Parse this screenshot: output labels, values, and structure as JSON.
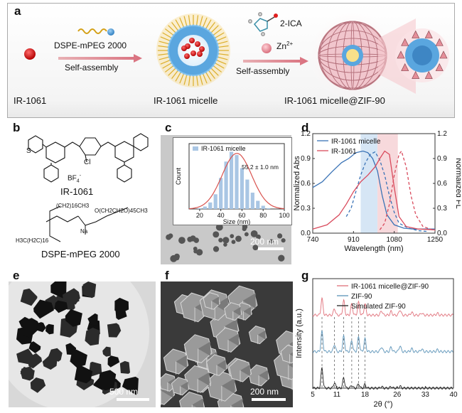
{
  "panel_labels": {
    "a": "a",
    "b": "b",
    "c": "c",
    "d": "d",
    "e": "e",
    "f": "f",
    "g": "g"
  },
  "scheme": {
    "reagent1": "DSPE-mPEG 2000",
    "step1": "Self-assembly",
    "reagent2": "2-ICA",
    "metal": "Zn",
    "metal_charge": "2+",
    "step2": "Self-assembly",
    "label_dye": "IR-1061",
    "label_micelle": "IR-1061 micelle",
    "label_product": "IR-1061 micelle@ZIF-90"
  },
  "structures": {
    "ir1061_name": "IR-1061",
    "counterion": "BF",
    "counterion_sub": "4",
    "counterion_sup": "-",
    "cl": "Cl",
    "sulfur": "S",
    "dspe_name": "DSPE-mPEG 2000",
    "chain1": "(CH2)16CH3",
    "chain2": "H3C(H2C)16",
    "peg": "O(CH2CH2O)45CH3",
    "na": "Na"
  },
  "tem_c": {
    "scale": "200 nm"
  },
  "tem_e": {
    "scale": "500 nm"
  },
  "sem_f": {
    "scale": "200 nm"
  },
  "colors": {
    "micelle_line": "#3a73b6",
    "dye_line": "#d94a5c",
    "zif_line": "#e0707a",
    "zif90_line": "#5b93b8",
    "sim_line": "#222222",
    "hist_bar": "#a9c6e4",
    "fit_line": "#d9534f",
    "band_blue": "#d6e6f5",
    "band_red": "#f7d9dc"
  },
  "chart_data": [
    {
      "id": "c",
      "type": "bar",
      "legend": "IR-1061 micelle",
      "annotation": "55.2 ± 1.0 nm",
      "xlabel": "Size (nm)",
      "ylabel": "Count",
      "xlim": [
        10,
        100
      ],
      "xticks": [
        20,
        40,
        60,
        80,
        100
      ],
      "x": [
        20,
        25,
        30,
        35,
        40,
        45,
        50,
        55,
        60,
        65,
        70,
        75,
        80,
        85
      ],
      "values": [
        1,
        3,
        8,
        18,
        38,
        58,
        70,
        66,
        50,
        36,
        20,
        10,
        4,
        1
      ],
      "fit": {
        "center": 55.2,
        "peak": 68
      }
    },
    {
      "id": "d",
      "type": "line",
      "xlabel": "Wavelength (nm)",
      "ylabel_left": "Normalized Abs",
      "ylabel_right": "Normalized FL",
      "xlim": [
        740,
        1250
      ],
      "xticks": [
        740,
        910,
        1080,
        1250
      ],
      "xtick_labels": [
        "740",
        "910",
        "1080",
        "1250"
      ],
      "ylim": [
        0,
        1.2
      ],
      "yticks": [
        0.0,
        0.3,
        0.6,
        0.9,
        1.2
      ],
      "ytick_labels": [
        "0.0",
        "0.3",
        "0.6",
        "0.9",
        "1.2"
      ],
      "legend": [
        "IR-1061 micelle",
        "IR-1061"
      ],
      "bands": [
        [
          940,
          1010
        ],
        [
          1010,
          1095
        ]
      ],
      "series": [
        {
          "name": "IR-1061 micelle",
          "kind": "abs",
          "x": [
            740,
            780,
            820,
            860,
            890,
            920,
            950,
            970,
            990,
            1010,
            1030,
            1050,
            1080,
            1120,
            1160,
            1200,
            1250
          ],
          "values": [
            0.55,
            0.62,
            0.74,
            0.85,
            0.9,
            0.97,
            0.99,
            0.97,
            0.9,
            0.75,
            0.45,
            0.22,
            0.1,
            0.06,
            0.05,
            0.05,
            0.05
          ]
        },
        {
          "name": "IR-1061 micelle",
          "kind": "fl",
          "x": [
            880,
            900,
            920,
            940,
            960,
            980,
            1000,
            1020,
            1040,
            1060,
            1080,
            1100,
            1140,
            1180,
            1220
          ],
          "values": [
            0.2,
            0.3,
            0.5,
            0.7,
            0.85,
            0.95,
            0.98,
            0.88,
            0.7,
            0.45,
            0.25,
            0.12,
            0.06,
            0.03,
            0.02
          ]
        },
        {
          "name": "IR-1061",
          "kind": "abs",
          "x": [
            740,
            800,
            850,
            880,
            910,
            940,
            970,
            1000,
            1020,
            1040,
            1060,
            1080,
            1100,
            1130,
            1180,
            1250
          ],
          "values": [
            0.05,
            0.1,
            0.22,
            0.35,
            0.5,
            0.62,
            0.7,
            0.8,
            0.9,
            0.99,
            0.95,
            0.55,
            0.2,
            0.08,
            0.05,
            0.04
          ]
        },
        {
          "name": "IR-1061",
          "kind": "fl",
          "x": [
            1020,
            1040,
            1060,
            1080,
            1100,
            1110,
            1130,
            1150,
            1170,
            1200,
            1250
          ],
          "values": [
            0.04,
            0.12,
            0.35,
            0.7,
            0.95,
            0.99,
            0.8,
            0.45,
            0.22,
            0.08,
            0.03
          ]
        }
      ]
    },
    {
      "id": "g",
      "type": "line",
      "xlabel": "2θ (°)",
      "ylabel": "Intensity (a.u.)",
      "xlim": [
        5,
        40
      ],
      "xticks": [
        5,
        11,
        18,
        26,
        33,
        40
      ],
      "legend": [
        "IR-1061 micelle@ZIF-90",
        "ZIF-90",
        "Simulated ZIF-90"
      ],
      "dashed_lines": [
        7.3,
        10.4,
        12.7,
        14.7,
        16.4,
        18.0
      ],
      "series": [
        {
          "name": "IR-1061 micelle@ZIF-90",
          "offset": 2.0,
          "peaks": [
            [
              7.3,
              0.45
            ],
            [
              10.4,
              0.18
            ],
            [
              12.7,
              0.4
            ],
            [
              14.7,
              0.3
            ],
            [
              16.4,
              0.35
            ],
            [
              18.0,
              0.3
            ],
            [
              22.1,
              0.12
            ],
            [
              24.5,
              0.1
            ],
            [
              26.7,
              0.15
            ],
            [
              29.6,
              0.08
            ],
            [
              32.1,
              0.06
            ],
            [
              36.0,
              0.05
            ]
          ]
        },
        {
          "name": "ZIF-90",
          "offset": 1.0,
          "peaks": [
            [
              7.3,
              0.55
            ],
            [
              10.4,
              0.2
            ],
            [
              12.7,
              0.42
            ],
            [
              14.7,
              0.3
            ],
            [
              16.4,
              0.4
            ],
            [
              18.0,
              0.35
            ],
            [
              22.1,
              0.13
            ],
            [
              24.5,
              0.12
            ],
            [
              26.7,
              0.16
            ],
            [
              29.6,
              0.08
            ],
            [
              32.1,
              0.07
            ],
            [
              36.0,
              0.05
            ]
          ]
        },
        {
          "name": "Simulated ZIF-90",
          "offset": 0.0,
          "peaks": [
            [
              7.3,
              0.55
            ],
            [
              10.4,
              0.15
            ],
            [
              12.7,
              0.28
            ],
            [
              14.7,
              0.08
            ],
            [
              16.4,
              0.12
            ],
            [
              18.0,
              0.1
            ],
            [
              22.1,
              0.04
            ],
            [
              24.5,
              0.04
            ],
            [
              26.7,
              0.05
            ]
          ]
        }
      ]
    }
  ]
}
